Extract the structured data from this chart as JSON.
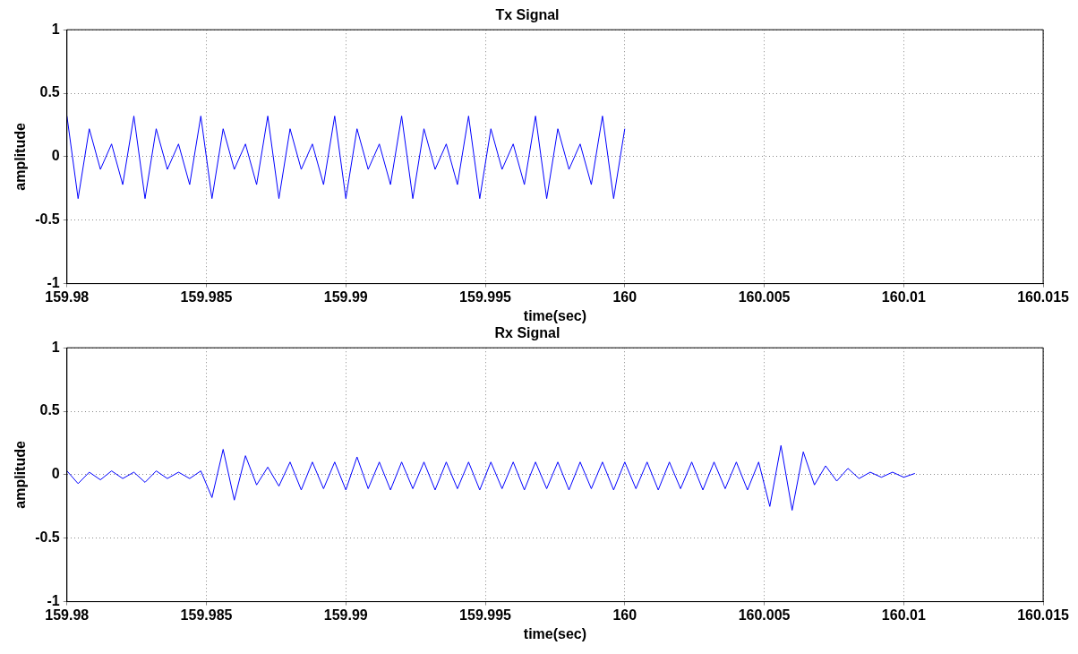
{
  "chart_data": [
    {
      "type": "line",
      "title": "Tx Signal",
      "xlabel": "time(sec)",
      "ylabel": "amplitude",
      "xlim": [
        159.98,
        160.015
      ],
      "xticks": [
        159.98,
        159.985,
        159.99,
        159.995,
        160,
        160.005,
        160.01,
        160.015
      ],
      "ylim": [
        -1,
        1
      ],
      "yticks": [
        -1,
        -0.5,
        0,
        0.5,
        1
      ],
      "grid": true,
      "marker": "none",
      "line_style": "solid",
      "series": [
        {
          "color": "#0000ff",
          "x": [
            159.98,
            159.9804,
            159.9808,
            159.9812,
            159.9816,
            159.982,
            159.9824,
            159.9828,
            159.9832,
            159.9836,
            159.984,
            159.9844,
            159.9848,
            159.9852,
            159.9856,
            159.986,
            159.9864,
            159.9868,
            159.9872,
            159.9876,
            159.988,
            159.9884,
            159.9888,
            159.9892,
            159.9896,
            159.99,
            159.9904,
            159.9908,
            159.9912,
            159.9916,
            159.992,
            159.9924,
            159.9928,
            159.9932,
            159.9936,
            159.994,
            159.9944,
            159.9948,
            159.9952,
            159.9956,
            159.996,
            159.9964,
            159.9968,
            159.9972,
            159.9976,
            159.998,
            159.9984,
            159.9988,
            159.9992,
            159.9996,
            160.0
          ],
          "values": [
            0.32,
            -0.33,
            0.22,
            -0.1,
            0.1,
            -0.22,
            0.32,
            -0.33,
            0.22,
            -0.1,
            0.1,
            -0.22,
            0.32,
            -0.33,
            0.22,
            -0.1,
            0.1,
            -0.22,
            0.32,
            -0.33,
            0.22,
            -0.1,
            0.1,
            -0.22,
            0.32,
            -0.33,
            0.22,
            -0.1,
            0.1,
            -0.22,
            0.32,
            -0.33,
            0.22,
            -0.1,
            0.1,
            -0.22,
            0.32,
            -0.33,
            0.22,
            -0.1,
            0.1,
            -0.22,
            0.32,
            -0.33,
            0.22,
            -0.1,
            0.1,
            -0.22,
            0.32,
            -0.33,
            0.22
          ]
        }
      ]
    },
    {
      "type": "line",
      "title": "Rx Signal",
      "xlabel": "time(sec)",
      "ylabel": "amplitude",
      "xlim": [
        159.98,
        160.015
      ],
      "xticks": [
        159.98,
        159.985,
        159.99,
        159.995,
        160,
        160.005,
        160.01,
        160.015
      ],
      "ylim": [
        -1,
        1
      ],
      "yticks": [
        -1,
        -0.5,
        0,
        0.5,
        1
      ],
      "grid": true,
      "marker": "none",
      "line_style": "solid",
      "series": [
        {
          "color": "#0000ff",
          "x": [
            159.98,
            159.9804,
            159.9808,
            159.9812,
            159.9816,
            159.982,
            159.9824,
            159.9828,
            159.9832,
            159.9836,
            159.984,
            159.9844,
            159.9848,
            159.9852,
            159.9856,
            159.986,
            159.9864,
            159.9868,
            159.9872,
            159.9876,
            159.988,
            159.9884,
            159.9888,
            159.9892,
            159.9896,
            159.99,
            159.9904,
            159.9908,
            159.9912,
            159.9916,
            159.992,
            159.9924,
            159.9928,
            159.9932,
            159.9936,
            159.994,
            159.9944,
            159.9948,
            159.9952,
            159.9956,
            159.996,
            159.9964,
            159.9968,
            159.9972,
            159.9976,
            159.998,
            159.9984,
            159.9988,
            159.9992,
            159.9996,
            160.0,
            160.0004,
            160.0008,
            160.0012,
            160.0016,
            160.002,
            160.0024,
            160.0028,
            160.0032,
            160.0036,
            160.004,
            160.0044,
            160.0048,
            160.0052,
            160.0056,
            160.006,
            160.0064,
            160.0068,
            160.0072,
            160.0076,
            160.008,
            160.0084,
            160.0088,
            160.0092,
            160.0096,
            160.01,
            160.0104
          ],
          "values": [
            0.03,
            -0.07,
            0.02,
            -0.04,
            0.03,
            -0.03,
            0.02,
            -0.06,
            0.03,
            -0.03,
            0.02,
            -0.03,
            0.03,
            -0.18,
            0.2,
            -0.2,
            0.15,
            -0.08,
            0.06,
            -0.09,
            0.1,
            -0.12,
            0.1,
            -0.11,
            0.1,
            -0.12,
            0.14,
            -0.11,
            0.1,
            -0.12,
            0.1,
            -0.11,
            0.1,
            -0.12,
            0.1,
            -0.11,
            0.1,
            -0.12,
            0.1,
            -0.11,
            0.1,
            -0.12,
            0.1,
            -0.11,
            0.1,
            -0.12,
            0.1,
            -0.11,
            0.1,
            -0.12,
            0.1,
            -0.11,
            0.1,
            -0.12,
            0.1,
            -0.11,
            0.1,
            -0.12,
            0.1,
            -0.11,
            0.1,
            -0.12,
            0.1,
            -0.25,
            0.23,
            -0.28,
            0.18,
            -0.08,
            0.07,
            -0.05,
            0.05,
            -0.03,
            0.02,
            -0.02,
            0.02,
            -0.02,
            0.01
          ]
        }
      ]
    }
  ]
}
